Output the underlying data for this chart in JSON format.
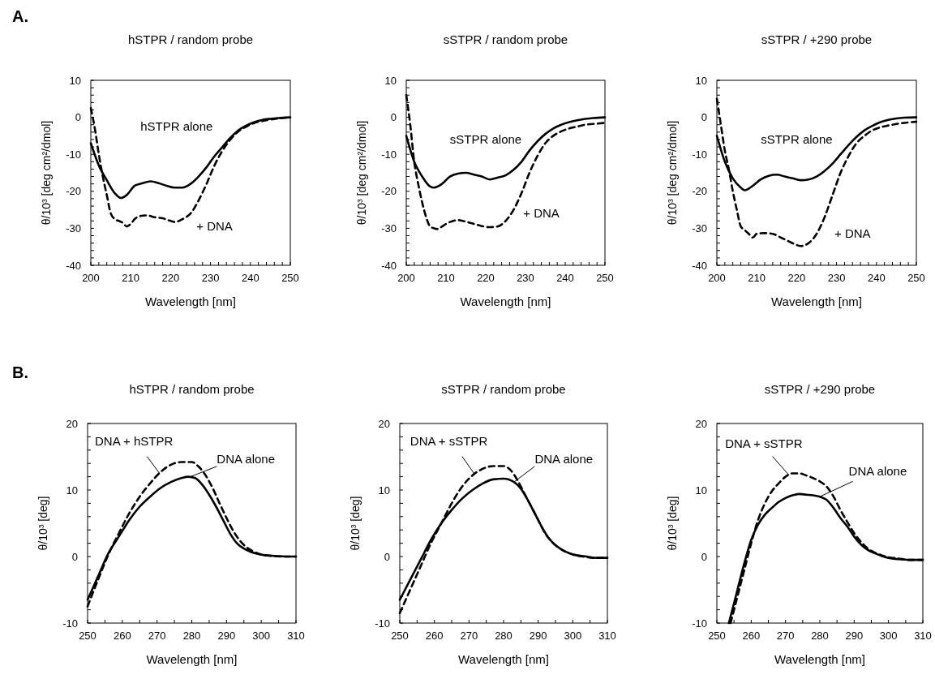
{
  "chart_data": [
    {
      "type": "line",
      "title": "hSTPR / random probe",
      "xlabel": "Wavelength [nm]",
      "ylabel": "θ/10³ [deg cm²/dmol]",
      "annotations": [
        "A."
      ],
      "xlim": [
        200,
        250
      ],
      "ylim": [
        -40,
        10
      ],
      "xticks": [
        200,
        {
          "value": 202,
          "label": null
        },
        {
          "value": 204,
          "label": null
        },
        {
          "value": 206,
          "label": null
        },
        {
          "value": 208,
          "label": null
        },
        210,
        {
          "value": 212,
          "label": null
        },
        {
          "value": 214,
          "label": null
        },
        {
          "value": 216,
          "label": null
        },
        {
          "value": 218,
          "label": null
        },
        220,
        {
          "value": 222,
          "label": null
        },
        {
          "value": 224,
          "label": null
        },
        {
          "value": 226,
          "label": null
        },
        {
          "value": 228,
          "label": null
        },
        230,
        {
          "value": 232,
          "label": null
        },
        {
          "value": 234,
          "label": null
        },
        {
          "value": 236,
          "label": null
        },
        {
          "value": 238,
          "label": null
        },
        240,
        {
          "value": 242,
          "label": null
        },
        {
          "value": 244,
          "label": null
        },
        {
          "value": 246,
          "label": null
        },
        {
          "value": 248,
          "label": null
        },
        250
      ],
      "yticks": [
        -40,
        {
          "value": -38,
          "label": null
        },
        {
          "value": -36,
          "label": null
        },
        {
          "value": -34,
          "label": null
        },
        {
          "value": -32,
          "label": null
        },
        -30,
        {
          "value": -28,
          "label": null
        },
        {
          "value": -26,
          "label": null
        },
        {
          "value": -24,
          "label": null
        },
        {
          "value": -22,
          "label": null
        },
        -20,
        {
          "value": -18,
          "label": null
        },
        {
          "value": -16,
          "label": null
        },
        {
          "value": -14,
          "label": null
        },
        {
          "value": -12,
          "label": null
        },
        -10,
        {
          "value": -8,
          "label": null
        },
        {
          "value": -6,
          "label": null
        },
        {
          "value": -4,
          "label": null
        },
        {
          "value": -2,
          "label": null
        },
        0,
        {
          "value": 2,
          "label": null
        },
        {
          "value": 4,
          "label": null
        },
        {
          "value": 6,
          "label": null
        },
        {
          "value": 8,
          "label": null
        },
        10
      ],
      "series": [
        {
          "name": "hSTPR alone",
          "color": "#000000",
          "line_style": "solid",
          "x": [
            200,
            202,
            204,
            206,
            207.5,
            209,
            211,
            213,
            215,
            217,
            219,
            221,
            223,
            225,
            227,
            229,
            231,
            233,
            235,
            237,
            239,
            241,
            243,
            245,
            247,
            250
          ],
          "values": [
            -7,
            -13,
            -17,
            -20.5,
            -21.8,
            -21,
            -18.5,
            -17.8,
            -17.3,
            -17.8,
            -18.5,
            -19,
            -19,
            -18,
            -16,
            -13.5,
            -10.5,
            -8,
            -5.5,
            -3.5,
            -2.2,
            -1.3,
            -0.7,
            -0.4,
            -0.2,
            0
          ]
        },
        {
          "name": "+ DNA",
          "color": "#000000",
          "line_style": "dashed",
          "x": [
            200,
            201,
            202,
            203,
            204,
            205,
            206,
            207,
            208,
            209,
            210,
            211,
            212,
            214,
            216,
            218,
            220,
            221,
            223,
            225,
            227,
            229,
            231,
            233,
            235,
            237,
            239,
            241,
            243,
            245,
            247,
            250
          ],
          "values": [
            2.5,
            -3,
            -10,
            -16,
            -21,
            -26,
            -27.5,
            -28,
            -28.5,
            -29.5,
            -28.8,
            -27.5,
            -26.8,
            -26.5,
            -27,
            -27.3,
            -28,
            -28.3,
            -27.5,
            -26,
            -22.5,
            -18,
            -13,
            -9,
            -6,
            -3.8,
            -2.5,
            -1.5,
            -1,
            -0.6,
            -0.3,
            0
          ]
        }
      ]
    },
    {
      "type": "line",
      "title": "sSTPR / random probe",
      "xlabel": "Wavelength [nm]",
      "ylabel": "θ/10³ [deg cm²/dmol]",
      "xlim": [
        200,
        250
      ],
      "ylim": [
        -40,
        10
      ],
      "xticks": [
        200,
        {
          "value": 202,
          "label": null
        },
        {
          "value": 204,
          "label": null
        },
        {
          "value": 206,
          "label": null
        },
        {
          "value": 208,
          "label": null
        },
        210,
        {
          "value": 212,
          "label": null
        },
        {
          "value": 214,
          "label": null
        },
        {
          "value": 216,
          "label": null
        },
        {
          "value": 218,
          "label": null
        },
        220,
        {
          "value": 222,
          "label": null
        },
        {
          "value": 224,
          "label": null
        },
        {
          "value": 226,
          "label": null
        },
        {
          "value": 228,
          "label": null
        },
        230,
        {
          "value": 232,
          "label": null
        },
        {
          "value": 234,
          "label": null
        },
        {
          "value": 236,
          "label": null
        },
        {
          "value": 238,
          "label": null
        },
        240,
        {
          "value": 242,
          "label": null
        },
        {
          "value": 244,
          "label": null
        },
        {
          "value": 246,
          "label": null
        },
        {
          "value": 248,
          "label": null
        },
        250
      ],
      "yticks": [
        -40,
        {
          "value": -38,
          "label": null
        },
        {
          "value": -36,
          "label": null
        },
        {
          "value": -34,
          "label": null
        },
        {
          "value": -32,
          "label": null
        },
        -30,
        {
          "value": -28,
          "label": null
        },
        {
          "value": -26,
          "label": null
        },
        {
          "value": -24,
          "label": null
        },
        {
          "value": -22,
          "label": null
        },
        -20,
        {
          "value": -18,
          "label": null
        },
        {
          "value": -16,
          "label": null
        },
        {
          "value": -14,
          "label": null
        },
        {
          "value": -12,
          "label": null
        },
        -10,
        {
          "value": -8,
          "label": null
        },
        {
          "value": -6,
          "label": null
        },
        {
          "value": -4,
          "label": null
        },
        {
          "value": -2,
          "label": null
        },
        0,
        {
          "value": 2,
          "label": null
        },
        {
          "value": 4,
          "label": null
        },
        {
          "value": 6,
          "label": null
        },
        {
          "value": 8,
          "label": null
        },
        10
      ],
      "series": [
        {
          "name": "sSTPR alone",
          "color": "#000000",
          "line_style": "solid",
          "x": [
            200,
            202,
            204,
            206,
            207,
            209,
            211,
            213,
            215,
            217,
            219,
            221,
            223,
            225,
            227,
            229,
            231,
            233,
            235,
            237,
            239,
            241,
            243,
            245,
            247,
            250
          ],
          "values": [
            -5,
            -12,
            -16,
            -18.7,
            -19,
            -18,
            -16,
            -15.2,
            -15,
            -15.5,
            -16,
            -16.8,
            -16.3,
            -15.7,
            -14.2,
            -12,
            -9,
            -6.5,
            -4.5,
            -3,
            -2,
            -1.3,
            -0.8,
            -0.4,
            -0.2,
            0
          ]
        },
        {
          "name": "+ DNA",
          "color": "#000000",
          "line_style": "dashed",
          "x": [
            200,
            201,
            202,
            203,
            204,
            205,
            206,
            207,
            208,
            209,
            211,
            213,
            215,
            217,
            219,
            221,
            223,
            225,
            227,
            229,
            231,
            233,
            235,
            237,
            239,
            241,
            243,
            245,
            247,
            250
          ],
          "values": [
            6,
            -2,
            -12,
            -18,
            -23,
            -27,
            -29.5,
            -30,
            -30.2,
            -29.5,
            -28.3,
            -27.8,
            -28.2,
            -28.8,
            -29.4,
            -29.7,
            -29.5,
            -28,
            -25,
            -20.5,
            -15,
            -10.5,
            -7,
            -5,
            -3.8,
            -3,
            -2.5,
            -2,
            -1.8,
            -1.5
          ]
        }
      ]
    },
    {
      "type": "line",
      "title": "sSTPR / +290 probe",
      "xlabel": "Wavelength [nm]",
      "ylabel": "θ/10³ [deg cm²/dmol]",
      "xlim": [
        200,
        250
      ],
      "ylim": [
        -40,
        10
      ],
      "xticks": [
        200,
        {
          "value": 202,
          "label": null
        },
        {
          "value": 204,
          "label": null
        },
        {
          "value": 206,
          "label": null
        },
        {
          "value": 208,
          "label": null
        },
        210,
        {
          "value": 212,
          "label": null
        },
        {
          "value": 214,
          "label": null
        },
        {
          "value": 216,
          "label": null
        },
        {
          "value": 218,
          "label": null
        },
        220,
        {
          "value": 222,
          "label": null
        },
        {
          "value": 224,
          "label": null
        },
        {
          "value": 226,
          "label": null
        },
        {
          "value": 228,
          "label": null
        },
        230,
        {
          "value": 232,
          "label": null
        },
        {
          "value": 234,
          "label": null
        },
        {
          "value": 236,
          "label": null
        },
        {
          "value": 238,
          "label": null
        },
        240,
        {
          "value": 242,
          "label": null
        },
        {
          "value": 244,
          "label": null
        },
        {
          "value": 246,
          "label": null
        },
        {
          "value": 248,
          "label": null
        },
        250
      ],
      "yticks": [
        -40,
        {
          "value": -38,
          "label": null
        },
        {
          "value": -36,
          "label": null
        },
        {
          "value": -34,
          "label": null
        },
        {
          "value": -32,
          "label": null
        },
        -30,
        {
          "value": -28,
          "label": null
        },
        {
          "value": -26,
          "label": null
        },
        {
          "value": -24,
          "label": null
        },
        {
          "value": -22,
          "label": null
        },
        -20,
        {
          "value": -18,
          "label": null
        },
        {
          "value": -16,
          "label": null
        },
        {
          "value": -14,
          "label": null
        },
        {
          "value": -12,
          "label": null
        },
        -10,
        {
          "value": -8,
          "label": null
        },
        {
          "value": -6,
          "label": null
        },
        {
          "value": -4,
          "label": null
        },
        {
          "value": -2,
          "label": null
        },
        0,
        {
          "value": 2,
          "label": null
        },
        {
          "value": 4,
          "label": null
        },
        {
          "value": 6,
          "label": null
        },
        {
          "value": 8,
          "label": null
        },
        10
      ],
      "series": [
        {
          "name": "sSTPR alone",
          "color": "#000000",
          "line_style": "solid",
          "x": [
            200,
            202,
            204,
            206,
            207,
            209,
            211,
            213,
            215,
            217,
            219,
            221,
            223,
            225,
            227,
            229,
            231,
            233,
            235,
            237,
            239,
            241,
            243,
            245,
            247,
            250
          ],
          "values": [
            -5,
            -12,
            -16.5,
            -19,
            -19.7,
            -18.5,
            -16.8,
            -15.8,
            -15.5,
            -16,
            -16.5,
            -17,
            -16.8,
            -16,
            -14.5,
            -12.5,
            -10,
            -7.5,
            -5.3,
            -3.5,
            -2.3,
            -1.3,
            -0.7,
            -0.3,
            -0.1,
            0
          ]
        },
        {
          "name": "+ DNA",
          "color": "#000000",
          "line_style": "dashed",
          "x": [
            200,
            201,
            202,
            203,
            204,
            205,
            206,
            207,
            208,
            209,
            210,
            212,
            214,
            216,
            218,
            220,
            221,
            223,
            225,
            227,
            229,
            231,
            233,
            235,
            237,
            239,
            241,
            243,
            245,
            247,
            250
          ],
          "values": [
            5,
            -2,
            -9,
            -14,
            -20,
            -25,
            -29.5,
            -30.5,
            -31.5,
            -32.5,
            -31.5,
            -31.3,
            -31.5,
            -32.5,
            -33.5,
            -34.5,
            -34.8,
            -34,
            -31.5,
            -27,
            -21,
            -15,
            -10.5,
            -7,
            -5,
            -3.5,
            -2.7,
            -2.2,
            -1.8,
            -1.5,
            -1.2
          ]
        }
      ]
    },
    {
      "type": "line",
      "title": "hSTPR / random probe",
      "xlabel": "Wavelength [nm]",
      "ylabel": "θ/10³ [deg]",
      "annotations": [
        "B."
      ],
      "xlim": [
        250,
        310
      ],
      "ylim": [
        -10,
        20
      ],
      "xticks": [
        250,
        {
          "value": 255,
          "label": null
        },
        260,
        {
          "value": 265,
          "label": null
        },
        270,
        {
          "value": 275,
          "label": null
        },
        280,
        {
          "value": 285,
          "label": null
        },
        290,
        {
          "value": 295,
          "label": null
        },
        300,
        {
          "value": 305,
          "label": null
        },
        310
      ],
      "yticks": [
        -10,
        {
          "value": -8,
          "label": null
        },
        {
          "value": -6,
          "label": null
        },
        {
          "value": -4,
          "label": null
        },
        {
          "value": -2,
          "label": null
        },
        0,
        {
          "value": 2,
          "label": null
        },
        {
          "value": 4,
          "label": null
        },
        {
          "value": 6,
          "label": null
        },
        {
          "value": 8,
          "label": null
        },
        10,
        {
          "value": 12,
          "label": null
        },
        {
          "value": 14,
          "label": null
        },
        {
          "value": 16,
          "label": null
        },
        {
          "value": 18,
          "label": null
        },
        20
      ],
      "series": [
        {
          "name": "DNA alone",
          "color": "#000000",
          "line_style": "solid",
          "x": [
            250,
            253,
            256,
            259,
            262,
            265,
            268,
            271,
            274,
            277,
            279,
            281,
            283,
            285,
            287,
            289,
            291,
            293,
            295,
            297,
            299,
            301,
            304,
            307,
            310
          ],
          "values": [
            -6.5,
            -3,
            0.5,
            3,
            5.5,
            7.5,
            9,
            10.3,
            11.2,
            11.8,
            12,
            11.8,
            10.8,
            9.3,
            7.5,
            5.5,
            3.5,
            2,
            1.2,
            0.7,
            0.4,
            0.2,
            0.1,
            0,
            0
          ]
        },
        {
          "name": "DNA + hSTPR",
          "color": "#000000",
          "line_style": "dashed",
          "x": [
            250,
            253,
            256,
            259,
            262,
            265,
            268,
            271,
            274,
            277,
            280,
            282,
            284,
            286,
            288,
            290,
            292,
            294,
            296,
            298,
            300,
            303,
            306,
            310
          ],
          "values": [
            -7.5,
            -3.5,
            0.3,
            3.5,
            6.5,
            9,
            11,
            12.7,
            13.8,
            14.2,
            14.2,
            13.5,
            12.2,
            10.3,
            8,
            5.8,
            3.8,
            2.3,
            1.3,
            0.7,
            0.3,
            0.1,
            0,
            0
          ]
        }
      ]
    },
    {
      "type": "line",
      "title": "sSTPR / random probe",
      "xlabel": "Wavelength [nm]",
      "ylabel": "θ/10³ [deg]",
      "xlim": [
        250,
        310
      ],
      "ylim": [
        -10,
        20
      ],
      "xticks": [
        250,
        {
          "value": 255,
          "label": null
        },
        260,
        {
          "value": 265,
          "label": null
        },
        270,
        {
          "value": 275,
          "label": null
        },
        280,
        {
          "value": 285,
          "label": null
        },
        290,
        {
          "value": 295,
          "label": null
        },
        300,
        {
          "value": 305,
          "label": null
        },
        310
      ],
      "yticks": [
        -10,
        {
          "value": -8,
          "label": null
        },
        {
          "value": -6,
          "label": null
        },
        {
          "value": -4,
          "label": null
        },
        {
          "value": -2,
          "label": null
        },
        0,
        {
          "value": 2,
          "label": null
        },
        {
          "value": 4,
          "label": null
        },
        {
          "value": 6,
          "label": null
        },
        {
          "value": 8,
          "label": null
        },
        10,
        {
          "value": 12,
          "label": null
        },
        {
          "value": 14,
          "label": null
        },
        {
          "value": 16,
          "label": null
        },
        {
          "value": 18,
          "label": null
        },
        20
      ],
      "series": [
        {
          "name": "DNA alone",
          "color": "#000000",
          "line_style": "solid",
          "x": [
            250,
            253,
            256,
            259,
            262,
            265,
            268,
            271,
            274,
            277,
            280,
            283,
            285,
            287,
            289,
            291,
            293,
            295,
            297,
            299,
            301,
            304,
            307,
            310
          ],
          "values": [
            -6.5,
            -3.5,
            -0.5,
            2.5,
            5,
            7,
            8.7,
            10,
            11,
            11.6,
            11.7,
            11.2,
            10.2,
            8.5,
            6.5,
            4.5,
            2.8,
            1.7,
            1,
            0.5,
            0.2,
            0,
            -0.2,
            -0.2
          ]
        },
        {
          "name": "DNA + sSTPR",
          "color": "#000000",
          "line_style": "dashed",
          "x": [
            250,
            253,
            256,
            259,
            262,
            265,
            268,
            271,
            274,
            277,
            280,
            282,
            284,
            286,
            288,
            290,
            292,
            294,
            296,
            298,
            300,
            303,
            306,
            310
          ],
          "values": [
            -8.5,
            -5,
            -1.5,
            2,
            5,
            8,
            10.5,
            12.2,
            13.2,
            13.6,
            13.6,
            13,
            11.5,
            9.5,
            7.5,
            5.5,
            3.5,
            2.2,
            1.3,
            0.7,
            0.3,
            0,
            -0.2,
            -0.2
          ]
        }
      ]
    },
    {
      "type": "line",
      "title": "sSTPR / +290 probe",
      "xlabel": "Wavelength [nm]",
      "ylabel": "θ/10³ [deg]",
      "xlim": [
        250,
        310
      ],
      "ylim": [
        -10,
        20
      ],
      "xticks": [
        250,
        {
          "value": 255,
          "label": null
        },
        260,
        {
          "value": 265,
          "label": null
        },
        270,
        {
          "value": 275,
          "label": null
        },
        280,
        {
          "value": 285,
          "label": null
        },
        290,
        {
          "value": 295,
          "label": null
        },
        300,
        {
          "value": 305,
          "label": null
        },
        310
      ],
      "yticks": [
        -10,
        {
          "value": -8,
          "label": null
        },
        {
          "value": -6,
          "label": null
        },
        {
          "value": -4,
          "label": null
        },
        {
          "value": -2,
          "label": null
        },
        0,
        {
          "value": 2,
          "label": null
        },
        {
          "value": 4,
          "label": null
        },
        {
          "value": 6,
          "label": null
        },
        {
          "value": 8,
          "label": null
        },
        10,
        {
          "value": 12,
          "label": null
        },
        {
          "value": 14,
          "label": null
        },
        {
          "value": 16,
          "label": null
        },
        {
          "value": 18,
          "label": null
        },
        20
      ],
      "series": [
        {
          "name": "DNA alone",
          "color": "#000000",
          "line_style": "solid",
          "x": [
            253.5,
            256,
            258,
            260,
            262,
            264,
            266,
            268,
            270,
            272,
            274,
            276,
            278,
            280,
            282,
            284,
            286,
            288,
            290,
            292,
            294,
            296,
            298,
            300,
            303,
            306,
            310
          ],
          "values": [
            -10,
            -5,
            -1,
            2.5,
            4.8,
            6.3,
            7.3,
            8.2,
            8.8,
            9.2,
            9.4,
            9.3,
            9.2,
            9,
            8.5,
            7.3,
            5.8,
            4.5,
            3,
            1.8,
            1,
            0.5,
            0.1,
            -0.2,
            -0.4,
            -0.5,
            -0.5
          ]
        },
        {
          "name": "DNA + sSTPR",
          "color": "#000000",
          "line_style": "dashed",
          "x": [
            254,
            256,
            258,
            260,
            262,
            264,
            266,
            268,
            270,
            272,
            274,
            276,
            278,
            280,
            282,
            284,
            286,
            288,
            290,
            292,
            294,
            296,
            298,
            300,
            303,
            306,
            310
          ],
          "values": [
            -10,
            -6,
            -2,
            2,
            5.5,
            8,
            9.8,
            11,
            12,
            12.5,
            12.5,
            12.2,
            11.8,
            11.3,
            10.5,
            9,
            7,
            5.2,
            3.5,
            2.2,
            1.2,
            0.6,
            0.2,
            -0.1,
            -0.3,
            -0.5,
            -0.5
          ]
        }
      ]
    }
  ]
}
